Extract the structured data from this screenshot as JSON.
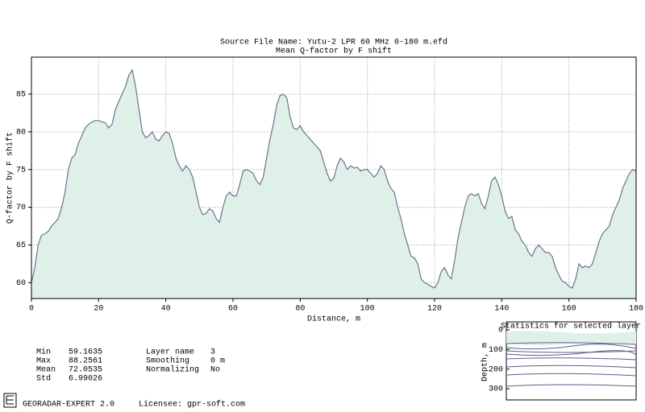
{
  "chart_data": {
    "type": "area",
    "title": "Source File Name: Yutu-2 LPR 60 MHz 0-180 m.efd",
    "subtitle": "Mean Q-factor by F shift",
    "xlabel": "Distance, m",
    "ylabel": "Q-factor by F shift",
    "x": [
      0,
      1,
      2,
      3,
      4,
      5,
      6,
      7,
      8,
      9,
      10,
      11,
      12,
      13,
      14,
      15,
      16,
      17,
      18,
      19,
      20,
      21,
      22,
      23,
      24,
      25,
      26,
      27,
      28,
      29,
      30,
      31,
      32,
      33,
      34,
      35,
      36,
      37,
      38,
      39,
      40,
      41,
      42,
      43,
      44,
      45,
      46,
      47,
      48,
      49,
      50,
      51,
      52,
      53,
      54,
      55,
      56,
      57,
      58,
      59,
      60,
      61,
      62,
      63,
      64,
      65,
      66,
      67,
      68,
      69,
      70,
      71,
      72,
      73,
      74,
      75,
      76,
      77,
      78,
      79,
      80,
      81,
      82,
      83,
      84,
      85,
      86,
      87,
      88,
      89,
      90,
      91,
      92,
      93,
      94,
      95,
      96,
      97,
      98,
      99,
      100,
      101,
      102,
      103,
      104,
      105,
      106,
      107,
      108,
      109,
      110,
      111,
      112,
      113,
      114,
      115,
      116,
      117,
      118,
      119,
      120,
      121,
      122,
      123,
      124,
      125,
      126,
      127,
      128,
      129,
      130,
      131,
      132,
      133,
      134,
      135,
      136,
      137,
      138,
      139,
      140,
      141,
      142,
      143,
      144,
      145,
      146,
      147,
      148,
      149,
      150,
      151,
      152,
      153,
      154,
      155,
      156,
      157,
      158,
      159,
      160,
      161,
      162,
      163,
      164,
      165,
      166,
      167,
      168,
      169,
      170,
      171,
      172,
      173,
      174,
      175,
      176,
      177,
      178,
      179,
      180
    ],
    "values": [
      60,
      62,
      65,
      66.3,
      66.5,
      66.8,
      67.5,
      68,
      68.5,
      70,
      72,
      75,
      76.5,
      77,
      78.5,
      79.5,
      80.5,
      81,
      81.3,
      81.5,
      81.5,
      81.3,
      81.2,
      80.5,
      81,
      83,
      84,
      85,
      86,
      87.5,
      88.2,
      86,
      83,
      80,
      79.2,
      79.5,
      80,
      79,
      78.8,
      79.5,
      80,
      79.8,
      78.5,
      76.5,
      75.5,
      74.8,
      75.5,
      75,
      74,
      72,
      70,
      69,
      69.2,
      69.8,
      69.5,
      68.5,
      68,
      70,
      71.5,
      72,
      71.5,
      71.5,
      73,
      74.8,
      75,
      74.8,
      74.5,
      73.5,
      73,
      74,
      76.5,
      79,
      81,
      83.5,
      84.8,
      85,
      84.5,
      82,
      80.5,
      80.3,
      80.8,
      80,
      79.5,
      79,
      78.5,
      78,
      77.5,
      76,
      74.5,
      73.5,
      73.8,
      75.5,
      76.5,
      76,
      75,
      75.5,
      75.2,
      75.3,
      74.8,
      75,
      75,
      74.5,
      74,
      74.5,
      75.5,
      75,
      73.5,
      72.5,
      72,
      70,
      68.5,
      66.5,
      65,
      63.5,
      63.3,
      62.5,
      60.5,
      60,
      59.8,
      59.5,
      59.3,
      60,
      61.5,
      62,
      61,
      60.5,
      63,
      66,
      68,
      70,
      71.5,
      71.8,
      71.5,
      71.8,
      70.5,
      69.8,
      71.5,
      73.5,
      74,
      73,
      71.5,
      69.5,
      68.5,
      68.8,
      67,
      66.5,
      65.5,
      65,
      64,
      63.5,
      64.5,
      65,
      64.5,
      64,
      64,
      63.5,
      62,
      61,
      60.2,
      60,
      59.5,
      59.3,
      60.5,
      62.5,
      62,
      62.2,
      62,
      62.5,
      64,
      65.5,
      66.5,
      67,
      67.5,
      69,
      70,
      71,
      72.5,
      73.5,
      74.5,
      75,
      74.8
    ],
    "color": "#dff0e9",
    "line_color": "#6b7390",
    "xlim": [
      0,
      180
    ],
    "xticks": [
      0,
      20,
      40,
      60,
      80,
      100,
      120,
      140,
      160,
      180
    ],
    "ylim": [
      57.9,
      89.9
    ],
    "yticks": [
      60,
      65,
      70,
      75,
      80,
      85
    ],
    "grid": true
  },
  "stats": [
    [
      [
        "Min",
        "59.1635"
      ],
      [
        "Max",
        "88.2561"
      ],
      [
        "Mean",
        "72.0535"
      ],
      [
        "Std",
        "6.99026"
      ]
    ],
    [
      [
        "Layer name",
        "3"
      ],
      [
        "Smoothing",
        "0 m"
      ],
      [
        "Normalizing",
        "No"
      ]
    ]
  ],
  "inset": {
    "title": "Statistics for selected layer",
    "ylabel": "Depth, m",
    "ylim": [
      -41,
      357
    ],
    "yticks": [
      0,
      100,
      200,
      300
    ]
  },
  "footer": {
    "product": "GEORADAR-EXPERT 2.0",
    "licensee": "Licensee: gpr-soft.com"
  }
}
